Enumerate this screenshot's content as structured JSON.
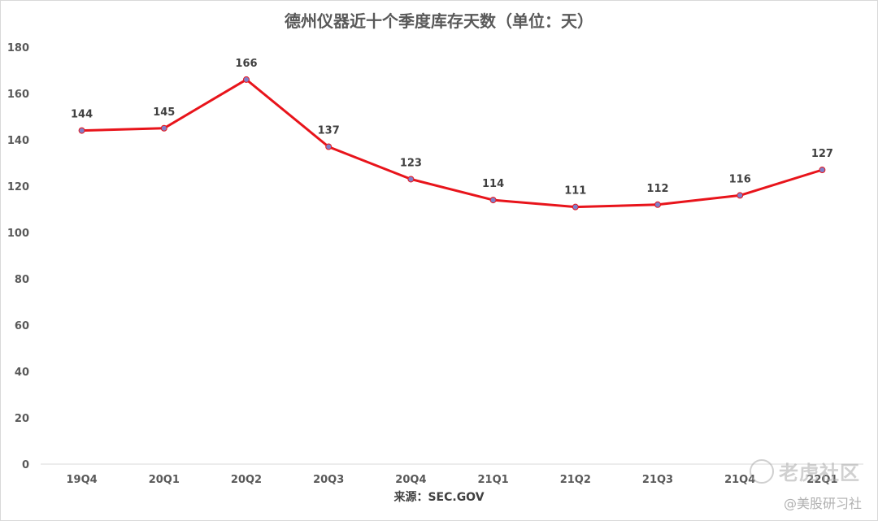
{
  "chart_data": {
    "type": "line",
    "title": "德州仪器近十个季度库存天数（单位：天）",
    "categories": [
      "19Q4",
      "20Q1",
      "20Q2",
      "20Q3",
      "20Q4",
      "21Q1",
      "21Q2",
      "21Q3",
      "21Q4",
      "22Q1"
    ],
    "values": [
      144,
      145,
      166,
      137,
      123,
      114,
      111,
      112,
      116,
      127
    ],
    "ylim": [
      0,
      180
    ],
    "yticks": [
      0,
      20,
      40,
      60,
      80,
      100,
      120,
      140,
      160,
      180
    ],
    "xlabel": "",
    "ylabel": "",
    "grid": false,
    "line_color": "#e8141b",
    "marker_color": "#7f7fc8",
    "data_labels": true
  },
  "source": "来源：SEC.GOV",
  "watermark": {
    "brand": "老虎社区",
    "handle": "@美股研习社"
  }
}
